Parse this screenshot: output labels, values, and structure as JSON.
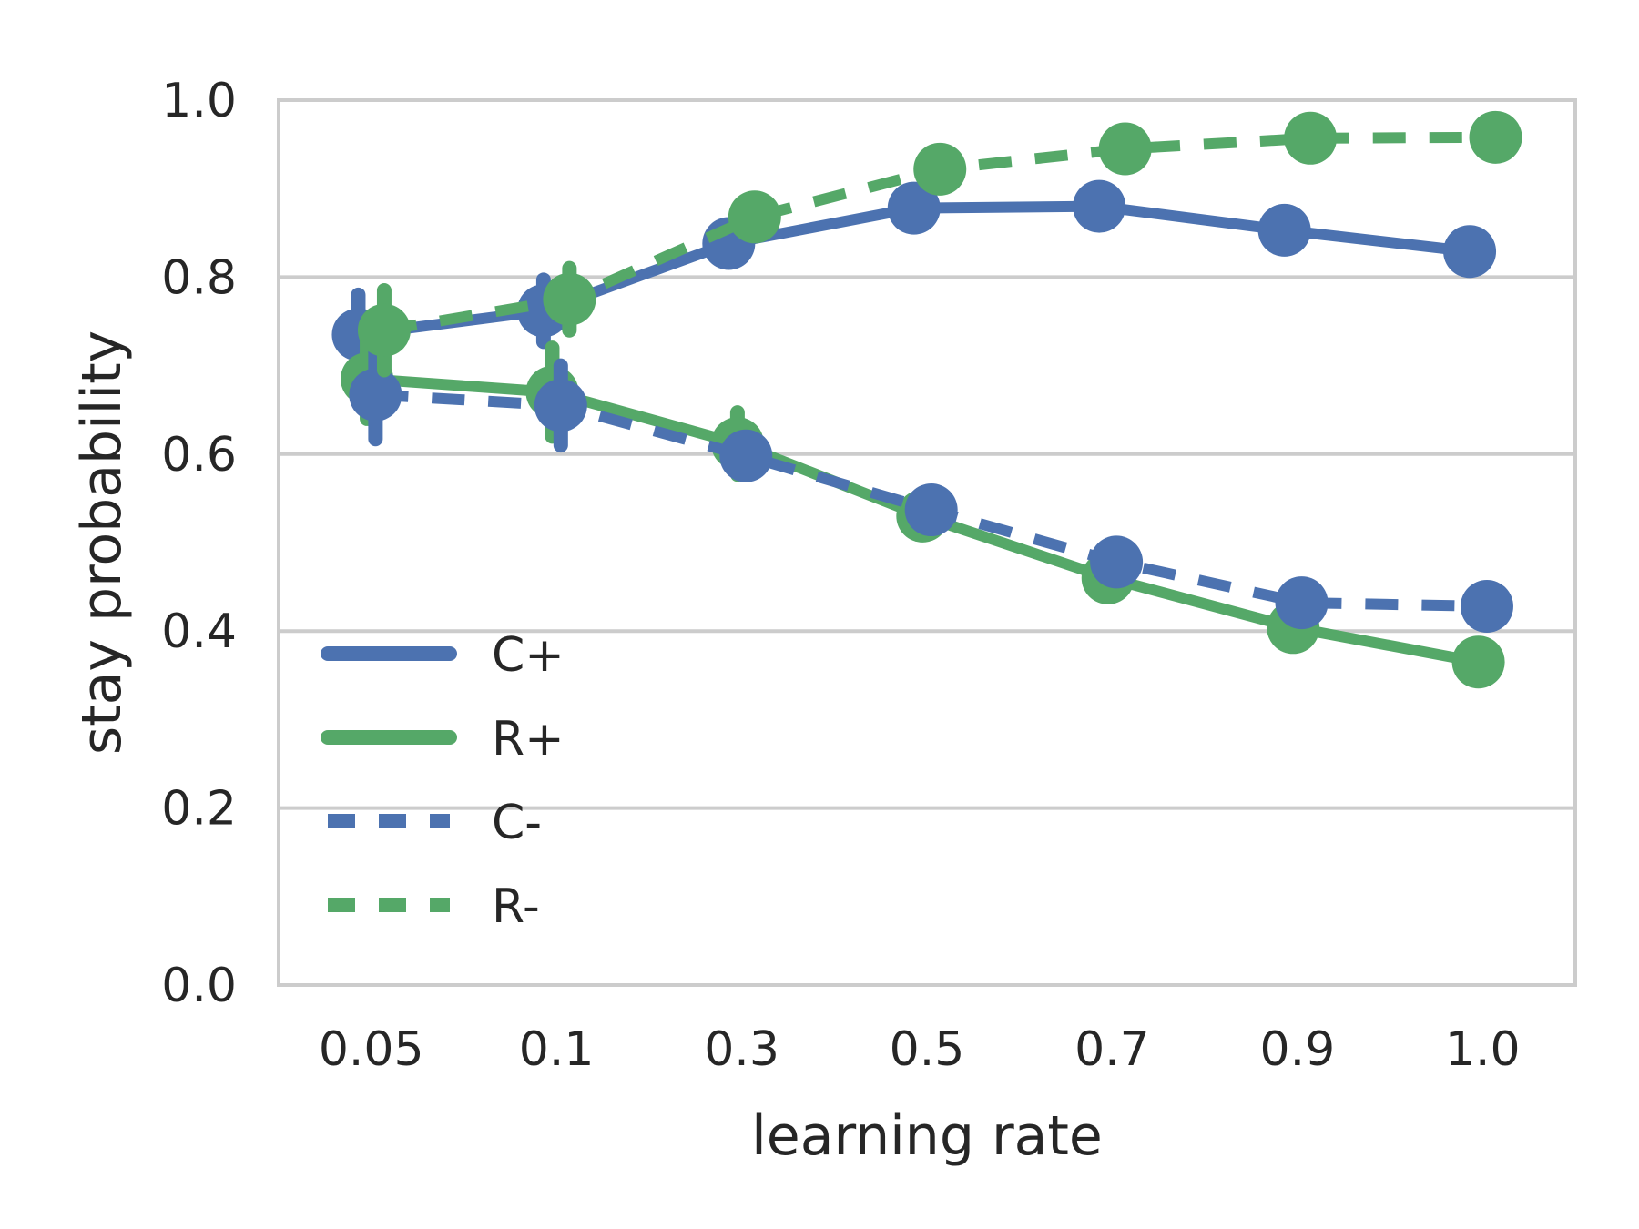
{
  "chart_data": {
    "type": "line",
    "title": "",
    "xlabel": "learning rate",
    "ylabel": "stay probability",
    "categories": [
      "0.05",
      "0.1",
      "0.3",
      "0.5",
      "0.7",
      "0.9",
      "1.0"
    ],
    "ylim": [
      0.0,
      1.0
    ],
    "yticks": [
      "0.0",
      "0.2",
      "0.4",
      "0.6",
      "0.8",
      "1.0"
    ],
    "grid": "horizontal",
    "legend": "center-left",
    "series": [
      {
        "name": "C+",
        "color": "#4c72b0",
        "dash": "solid",
        "values": [
          0.735,
          0.762,
          0.838,
          0.878,
          0.88,
          0.853,
          0.829
        ],
        "err": [
          0.045,
          0.035,
          0.01,
          0.008,
          0.008,
          0.008,
          0.008
        ]
      },
      {
        "name": "R+",
        "color": "#55a868",
        "dash": "solid",
        "values": [
          0.685,
          0.67,
          0.612,
          0.53,
          0.46,
          0.404,
          0.365
        ],
        "err": [
          0.045,
          0.05,
          0.035,
          0.01,
          0.008,
          0.008,
          0.008
        ]
      },
      {
        "name": "C-",
        "color": "#4c72b0",
        "dash": "dashed",
        "values": [
          0.667,
          0.655,
          0.598,
          0.537,
          0.478,
          0.432,
          0.428
        ],
        "err": [
          0.05,
          0.045,
          0.02,
          0.01,
          0.008,
          0.008,
          0.008
        ]
      },
      {
        "name": "R-",
        "color": "#55a868",
        "dash": "dashed",
        "values": [
          0.74,
          0.775,
          0.868,
          0.922,
          0.945,
          0.957,
          0.958
        ],
        "err": [
          0.045,
          0.035,
          0.01,
          0.008,
          0.008,
          0.008,
          0.008
        ]
      }
    ]
  }
}
